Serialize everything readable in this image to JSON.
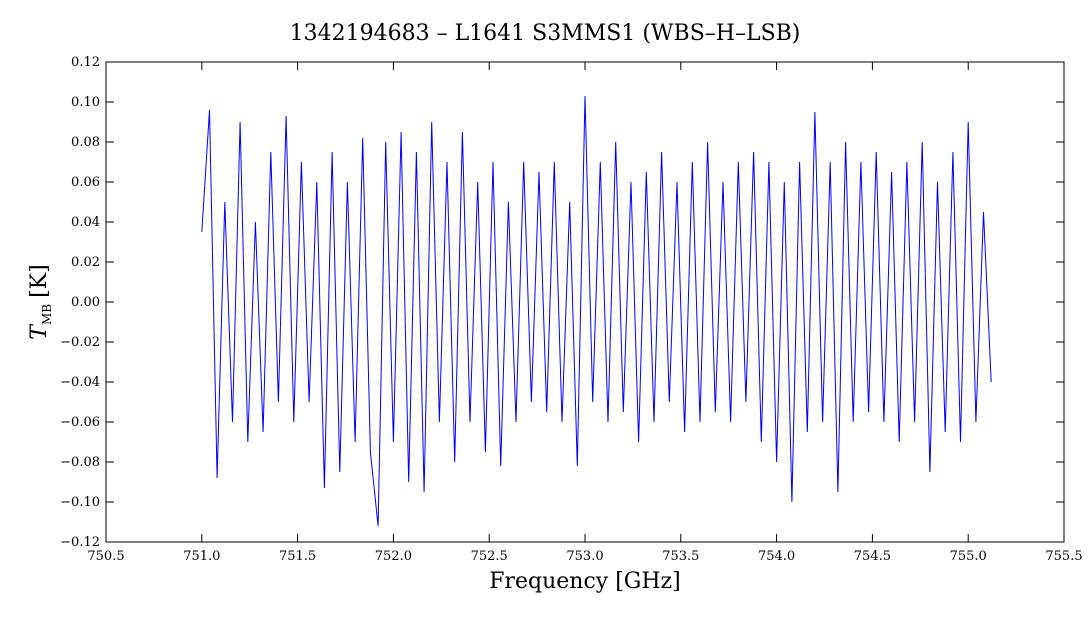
{
  "chart_data": {
    "type": "line",
    "title": "1342194683 – L1641 S3MMS1 (WBS–H–LSB)",
    "x_label": "Frequency [GHz]",
    "y_label": {
      "symbol": "T",
      "subscript": "MB",
      "unit": "[K]"
    },
    "xlim": [
      750.5,
      755.5
    ],
    "ylim": [
      -0.12,
      0.12
    ],
    "xticks": [
      {
        "value": 750.5,
        "label": "750.5"
      },
      {
        "value": 751,
        "label": "751.0"
      },
      {
        "value": 751.5,
        "label": "751.5"
      },
      {
        "value": 752,
        "label": "752.0"
      },
      {
        "value": 752.5,
        "label": "752.5"
      },
      {
        "value": 753,
        "label": "753.0"
      },
      {
        "value": 753.5,
        "label": "753.5"
      },
      {
        "value": 754,
        "label": "754.0"
      },
      {
        "value": 754.5,
        "label": "754.5"
      },
      {
        "value": 755,
        "label": "755.0"
      },
      {
        "value": 755.5,
        "label": "755.5"
      }
    ],
    "yticks": [
      {
        "value": -0.12,
        "label": "−0.12"
      },
      {
        "value": -0.1,
        "label": "−0.10"
      },
      {
        "value": -0.08,
        "label": "−0.08"
      },
      {
        "value": -0.06,
        "label": "−0.06"
      },
      {
        "value": -0.04,
        "label": "−0.04"
      },
      {
        "value": -0.02,
        "label": "−0.02"
      },
      {
        "value": 0,
        "label": "0.00"
      },
      {
        "value": 0.02,
        "label": "0.02"
      },
      {
        "value": 0.04,
        "label": "0.04"
      },
      {
        "value": 0.06,
        "label": "0.06"
      },
      {
        "value": 0.08,
        "label": "0.08"
      },
      {
        "value": 0.1,
        "label": "0.10"
      },
      {
        "value": 0.12,
        "label": "0.12"
      }
    ],
    "color": "#0000ff",
    "x": [
      751.0,
      751.04,
      751.08,
      751.12,
      751.16,
      751.2,
      751.24,
      751.28,
      751.32,
      751.36,
      751.4,
      751.44,
      751.48,
      751.52,
      751.56,
      751.6,
      751.64,
      751.68,
      751.72,
      751.76,
      751.8,
      751.84,
      751.88,
      751.92,
      751.96,
      752.0,
      752.04,
      752.08,
      752.12,
      752.16,
      752.2,
      752.24,
      752.28,
      752.32,
      752.36,
      752.4,
      752.44,
      752.48,
      752.52,
      752.56,
      752.6,
      752.64,
      752.68,
      752.72,
      752.76,
      752.8,
      752.84,
      752.88,
      752.92,
      752.96,
      753.0,
      753.04,
      753.08,
      753.12,
      753.16,
      753.2,
      753.24,
      753.28,
      753.32,
      753.36,
      753.4,
      753.44,
      753.48,
      753.52,
      753.56,
      753.6,
      753.64,
      753.68,
      753.72,
      753.76,
      753.8,
      753.84,
      753.88,
      753.92,
      753.96,
      754.0,
      754.04,
      754.08,
      754.12,
      754.16,
      754.2,
      754.24,
      754.28,
      754.32,
      754.36,
      754.4,
      754.44,
      754.48,
      754.52,
      754.56,
      754.6,
      754.64,
      754.68,
      754.72,
      754.76,
      754.8,
      754.84,
      754.88,
      754.92,
      754.96,
      755.0,
      755.04,
      755.08,
      755.12
    ],
    "values": [
      0.035,
      0.096,
      -0.088,
      0.05,
      -0.06,
      0.09,
      -0.07,
      0.04,
      -0.065,
      0.075,
      -0.05,
      0.093,
      -0.06,
      0.07,
      -0.05,
      0.06,
      -0.093,
      0.075,
      -0.085,
      0.06,
      -0.07,
      0.082,
      -0.075,
      -0.112,
      0.08,
      -0.07,
      0.085,
      -0.09,
      0.075,
      -0.095,
      0.09,
      -0.06,
      0.07,
      -0.08,
      0.085,
      -0.06,
      0.06,
      -0.075,
      0.07,
      -0.082,
      0.05,
      -0.06,
      0.07,
      -0.05,
      0.065,
      -0.055,
      0.07,
      -0.06,
      0.05,
      -0.082,
      0.103,
      -0.05,
      0.07,
      -0.06,
      0.08,
      -0.055,
      0.06,
      -0.07,
      0.065,
      -0.06,
      0.075,
      -0.05,
      0.06,
      -0.065,
      0.07,
      -0.06,
      0.08,
      -0.055,
      0.06,
      -0.06,
      0.07,
      -0.05,
      0.075,
      -0.07,
      0.07,
      -0.08,
      0.06,
      -0.1,
      0.07,
      -0.065,
      0.095,
      -0.06,
      0.07,
      -0.095,
      0.08,
      -0.06,
      0.07,
      -0.055,
      0.075,
      -0.06,
      0.065,
      -0.07,
      0.07,
      -0.06,
      0.08,
      -0.085,
      0.06,
      -0.065,
      0.075,
      -0.07,
      0.09,
      -0.06,
      0.045,
      -0.04
    ]
  }
}
